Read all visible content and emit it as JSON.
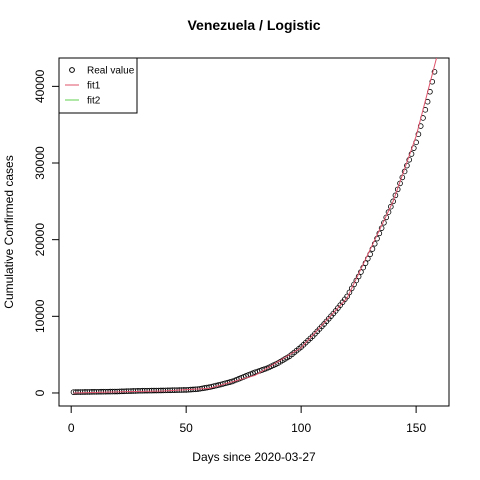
{
  "chart_data": {
    "type": "scatter",
    "title": "Venezuela / Logistic",
    "xlabel": "Days since 2020-03-27",
    "ylabel": "Cumulative Confirmed cases",
    "xlim": [
      -5.3,
      164.3
    ],
    "ylim": [
      -1700,
      43700
    ],
    "xticks": [
      0,
      50,
      100,
      150
    ],
    "yticks": [
      0,
      10000,
      20000,
      30000,
      40000
    ],
    "legend": "top-left",
    "series": [
      {
        "name": "Real value",
        "color": "#000000",
        "x": [
          1,
          2,
          3,
          4,
          5,
          6,
          7,
          8,
          9,
          10,
          11,
          12,
          13,
          14,
          15,
          16,
          17,
          18,
          19,
          20,
          21,
          22,
          23,
          24,
          25,
          26,
          27,
          28,
          29,
          30,
          31,
          32,
          33,
          34,
          35,
          36,
          37,
          38,
          39,
          40,
          41,
          42,
          43,
          44,
          45,
          46,
          47,
          48,
          49,
          50,
          51,
          52,
          53,
          54,
          55,
          56,
          57,
          58,
          59,
          60,
          61,
          62,
          63,
          64,
          65,
          66,
          67,
          68,
          69,
          70,
          71,
          72,
          73,
          74,
          75,
          76,
          77,
          78,
          79,
          80,
          81,
          82,
          83,
          84,
          85,
          86,
          87,
          88,
          89,
          90,
          91,
          92,
          93,
          94,
          95,
          96,
          97,
          98,
          99,
          100,
          101,
          102,
          103,
          104,
          105,
          106,
          107,
          108,
          109,
          110,
          111,
          112,
          113,
          114,
          115,
          116,
          117,
          118,
          119,
          120,
          121,
          122,
          123,
          124,
          125,
          126,
          127,
          128,
          129,
          130,
          131,
          132,
          133,
          134,
          135,
          136,
          137,
          138,
          139,
          140,
          141,
          142,
          143,
          144,
          145,
          146,
          147,
          148,
          149,
          150,
          151,
          152,
          153,
          154,
          155,
          156,
          157,
          158
        ],
        "values": [
          107,
          112,
          117,
          121,
          126,
          131,
          136,
          140,
          145,
          150,
          154,
          158,
          162,
          166,
          170,
          174,
          178,
          182,
          186,
          190,
          200,
          210,
          220,
          230,
          240,
          250,
          260,
          270,
          280,
          290,
          294,
          298,
          302,
          306,
          310,
          314,
          318,
          322,
          326,
          330,
          337,
          344,
          351,
          358,
          365,
          372,
          379,
          386,
          393,
          400,
          420,
          440,
          460,
          480,
          500,
          550,
          600,
          650,
          700,
          750,
          820,
          890,
          960,
          1030,
          1100,
          1180,
          1260,
          1340,
          1420,
          1500,
          1620,
          1740,
          1860,
          1980,
          2100,
          2220,
          2340,
          2460,
          2580,
          2700,
          2800,
          2900,
          3000,
          3100,
          3200,
          3340,
          3480,
          3620,
          3760,
          3900,
          4080,
          4260,
          4440,
          4620,
          4800,
          5040,
          5280,
          5520,
          5760,
          6000,
          6280,
          6560,
          6840,
          7120,
          7400,
          7720,
          8040,
          8360,
          8680,
          9000,
          9340,
          9680,
          10020,
          10360,
          10700,
          11080,
          11460,
          11840,
          12220,
          12600,
          13120,
          13640,
          14160,
          14680,
          15200,
          15780,
          16360,
          16940,
          17520,
          18100,
          18780,
          19460,
          20140,
          20820,
          21500,
          22200,
          22900,
          23600,
          24300,
          25000,
          25780,
          26560,
          27340,
          28120,
          28900,
          29660,
          30420,
          31180,
          31940,
          32700,
          33760,
          34820,
          35880,
          36940,
          38000,
          39300,
          40600,
          41900
        ]
      },
      {
        "name": "fit1",
        "color": "#df536b",
        "line": true,
        "x": [
          1,
          20,
          40,
          60,
          80,
          100,
          120,
          140,
          150,
          160
        ],
        "values": [
          0,
          150,
          250,
          600,
          2300,
          5900,
          12400,
          25000,
          33500,
          45000
        ]
      },
      {
        "name": "fit2",
        "color": "#61d04f",
        "line": true,
        "x": [],
        "values": []
      }
    ]
  }
}
